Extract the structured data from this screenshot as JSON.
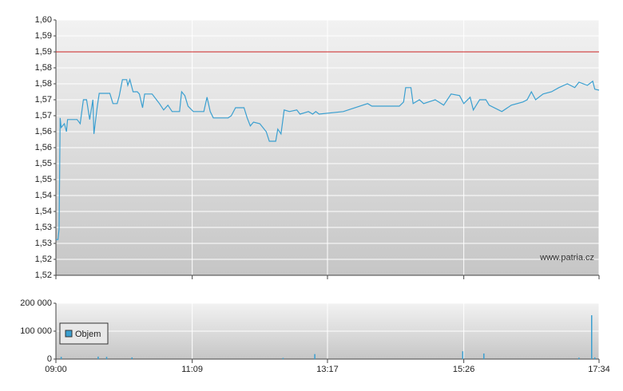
{
  "chart_data": [
    {
      "type": "line",
      "color": "#3a9fd0",
      "x": [
        "09:00",
        "09:02",
        "09:03",
        "09:04",
        "09:05",
        "09:08",
        "09:10",
        "09:11",
        "09:20",
        "09:23",
        "09:26",
        "09:29",
        "09:32",
        "09:35",
        "09:36",
        "09:39",
        "09:41",
        "09:51",
        "09:54",
        "09:58",
        "10:00",
        "10:03",
        "10:07",
        "10:08",
        "10:10",
        "10:13",
        "10:17",
        "10:19",
        "10:22",
        "10:24",
        "10:31",
        "10:38",
        "10:42",
        "10:46",
        "10:50",
        "10:57",
        "10:59",
        "11:02",
        "11:05",
        "11:10",
        "11:20",
        "11:23",
        "11:26",
        "11:29",
        "11:43",
        "11:46",
        "11:50",
        "11:58",
        "12:01",
        "12:04",
        "12:07",
        "12:13",
        "12:19",
        "12:22",
        "12:28",
        "12:30",
        "12:33",
        "12:36",
        "12:41",
        "12:48",
        "12:51",
        "12:59",
        "13:03",
        "13:06",
        "13:09",
        "13:32",
        "13:55",
        "13:59",
        "14:25",
        "14:29",
        "14:31",
        "14:36",
        "14:38",
        "14:44",
        "14:48",
        "14:59",
        "15:07",
        "15:14",
        "15:22",
        "15:26",
        "15:32",
        "15:35",
        "15:41",
        "15:47",
        "15:50",
        "16:02",
        "16:11",
        "16:22",
        "16:26",
        "16:30",
        "16:34",
        "16:41",
        "16:49",
        "16:56",
        "17:04",
        "17:11",
        "17:15",
        "17:23",
        "17:28",
        "17:30",
        "17:34"
      ],
      "values": [
        1.5312,
        1.5312,
        1.5345,
        1.5693,
        1.5663,
        1.5675,
        1.565,
        1.5688,
        1.5688,
        1.5675,
        1.575,
        1.575,
        1.5688,
        1.575,
        1.5643,
        1.5725,
        1.577,
        1.577,
        1.5738,
        1.5738,
        1.5763,
        1.5813,
        1.5813,
        1.5795,
        1.5813,
        1.5775,
        1.5775,
        1.5768,
        1.5725,
        1.5768,
        1.5768,
        1.5738,
        1.5718,
        1.5733,
        1.5713,
        1.5713,
        1.5775,
        1.5763,
        1.573,
        1.5713,
        1.5713,
        1.5758,
        1.5713,
        1.5693,
        1.5693,
        1.57,
        1.5725,
        1.5725,
        1.5693,
        1.5668,
        1.568,
        1.5675,
        1.565,
        1.562,
        1.562,
        1.5658,
        1.5643,
        1.5718,
        1.5713,
        1.5718,
        1.5705,
        1.5713,
        1.5705,
        1.5713,
        1.5705,
        1.5713,
        1.5738,
        1.573,
        1.573,
        1.5743,
        1.5788,
        1.5788,
        1.5738,
        1.575,
        1.5738,
        1.575,
        1.5733,
        1.5768,
        1.5763,
        1.5738,
        1.5758,
        1.5718,
        1.575,
        1.575,
        1.5733,
        1.5713,
        1.5733,
        1.5743,
        1.575,
        1.5775,
        1.575,
        1.5768,
        1.5775,
        1.5788,
        1.58,
        1.5788,
        1.5805,
        1.5795,
        1.5808,
        1.5783,
        1.578
      ],
      "xlim": [
        "09:00",
        "17:34"
      ],
      "xticks": [
        "09:00",
        "11:09",
        "13:17",
        "15:26",
        "17:34"
      ],
      "ylim": [
        1.52,
        1.6
      ],
      "yticks": [
        {
          "value": 1.6,
          "label": "1,60"
        },
        {
          "value": 1.595,
          "label": "1,59"
        },
        {
          "value": 1.59,
          "label": "1,59"
        },
        {
          "value": 1.585,
          "label": "1,58"
        },
        {
          "value": 1.58,
          "label": "1,58"
        },
        {
          "value": 1.575,
          "label": "1,57"
        },
        {
          "value": 1.57,
          "label": "1,57"
        },
        {
          "value": 1.565,
          "label": "1,56"
        },
        {
          "value": 1.56,
          "label": "1,56"
        },
        {
          "value": 1.555,
          "label": "1,55"
        },
        {
          "value": 1.55,
          "label": "1,55"
        },
        {
          "value": 1.545,
          "label": "1,54"
        },
        {
          "value": 1.54,
          "label": "1,54"
        },
        {
          "value": 1.535,
          "label": "1,53"
        },
        {
          "value": 1.53,
          "label": "1,53"
        },
        {
          "value": 1.525,
          "label": "1,52"
        },
        {
          "value": 1.52,
          "label": "1,52"
        }
      ],
      "reference_line": {
        "value": 1.59,
        "color": "#cc2222"
      },
      "grid": true,
      "source_text": "www.patria.cz"
    },
    {
      "type": "bar",
      "x": [
        "09:05",
        "09:40",
        "09:48",
        "10:12",
        "12:35",
        "13:05",
        "15:25",
        "15:45",
        "17:15",
        "17:27",
        "17:30"
      ],
      "series": [
        {
          "name": "Objem",
          "color": "#3a9fd0",
          "values": [
            8000,
            9000,
            8000,
            6000,
            4000,
            18000,
            28000,
            20000,
            5000,
            157000,
            6000
          ]
        }
      ],
      "xlim": [
        "09:00",
        "17:34"
      ],
      "xticks": [
        "09:00",
        "11:09",
        "13:17",
        "15:26",
        "17:34"
      ],
      "ylim": [
        0,
        200000
      ],
      "yticks": [
        0,
        {
          "value": 100000,
          "label": "100 000"
        },
        {
          "value": 200000,
          "label": "200 000"
        }
      ],
      "grid": true,
      "legend": "upper-left"
    }
  ]
}
